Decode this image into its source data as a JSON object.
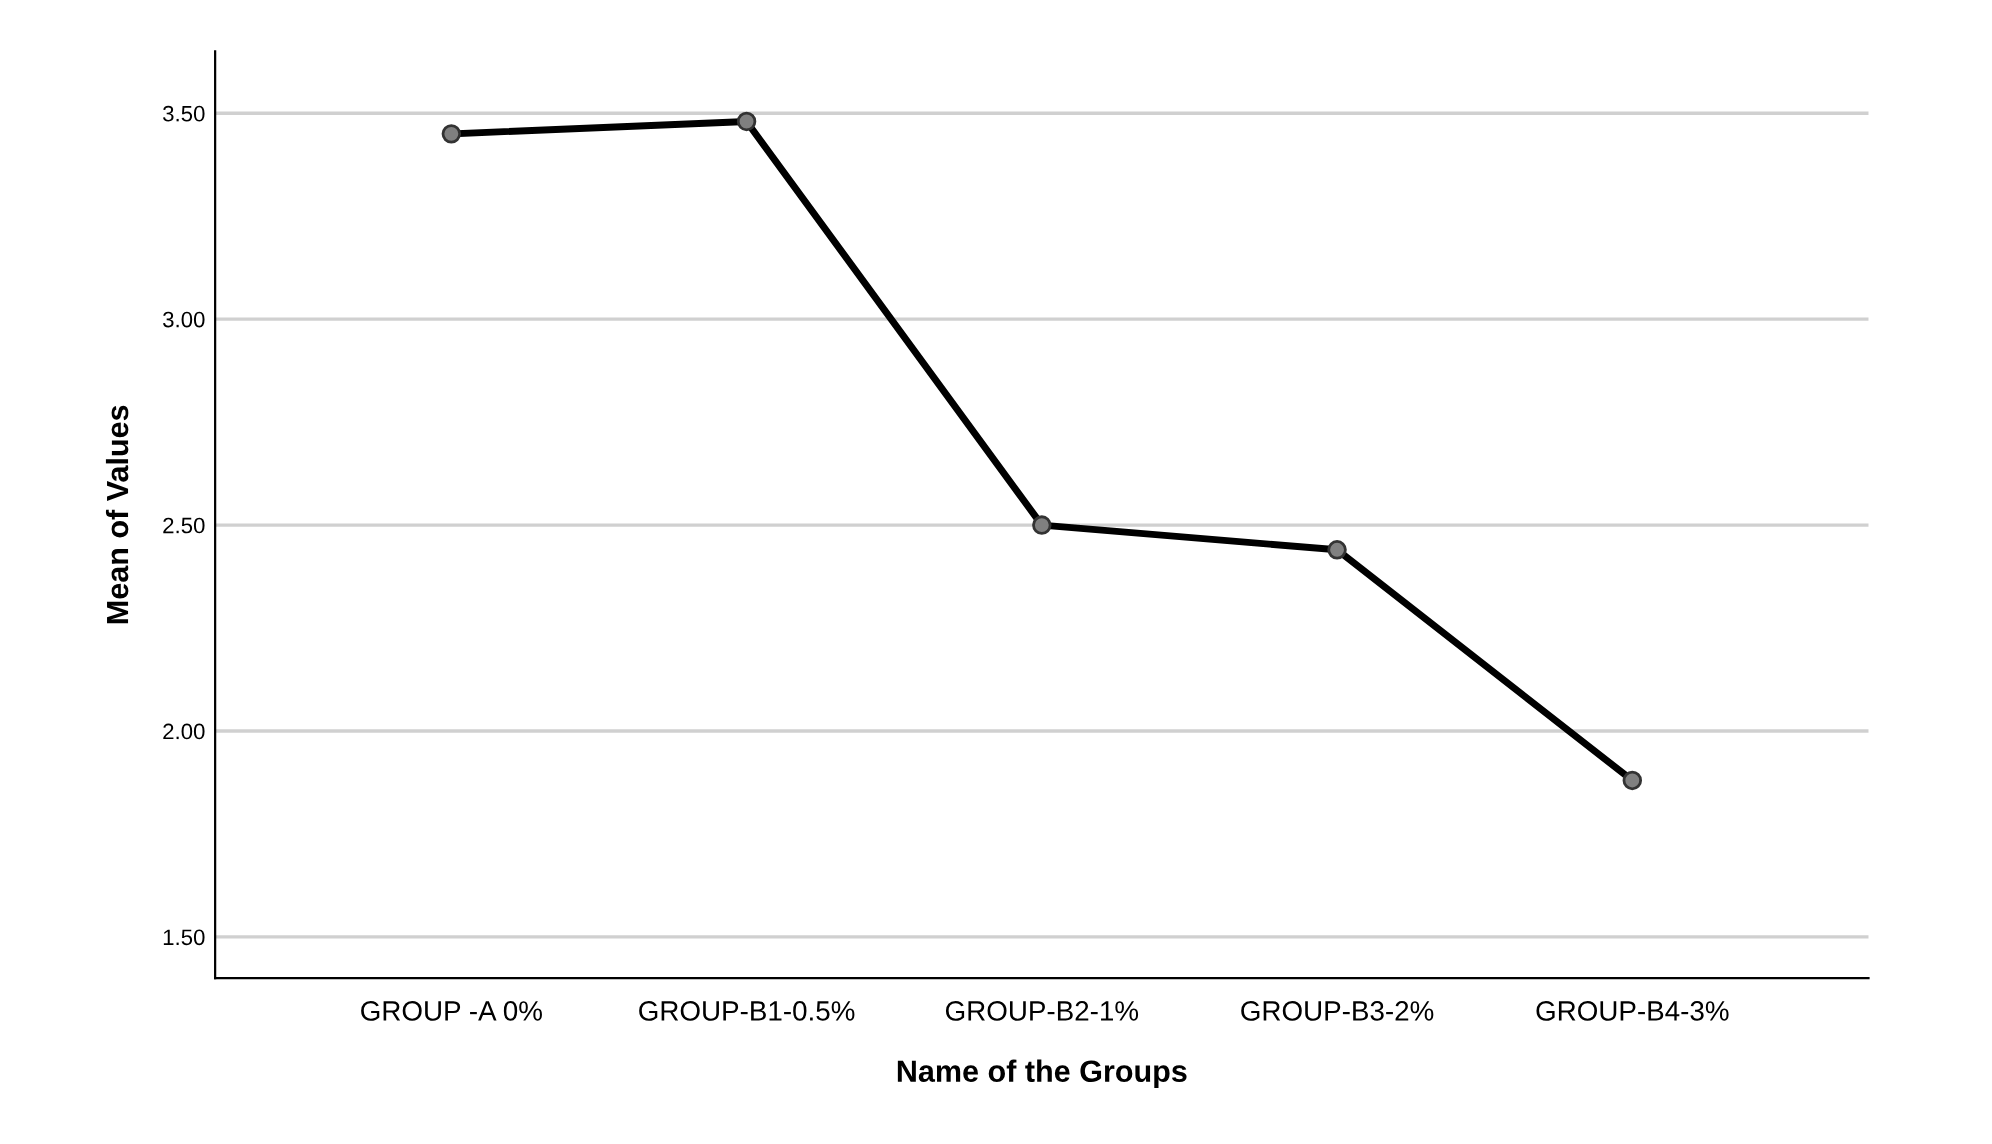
{
  "chart_data": {
    "type": "line",
    "xlabel": "Name of the Groups",
    "ylabel": "Mean of Values",
    "categories": [
      "GROUP -A 0%",
      "GROUP-B1-0.5%",
      "GROUP-B2-1%",
      "GROUP-B3-2%",
      "GROUP-B4-3%"
    ],
    "series": [
      {
        "color": "#000000",
        "values": [
          3.45,
          3.48,
          2.5,
          2.44,
          1.88
        ]
      }
    ],
    "ylim": [
      1.4,
      3.65
    ],
    "yticks": [
      {
        "value": 1.5,
        "label": "1.50"
      },
      {
        "value": 2.0,
        "label": "2.00"
      },
      {
        "value": 2.5,
        "label": "2.50"
      },
      {
        "value": 3.0,
        "label": "3.00"
      },
      {
        "value": 3.5,
        "label": "3.50"
      }
    ],
    "grid": "y",
    "marker": "circle",
    "line_style": "solid"
  }
}
